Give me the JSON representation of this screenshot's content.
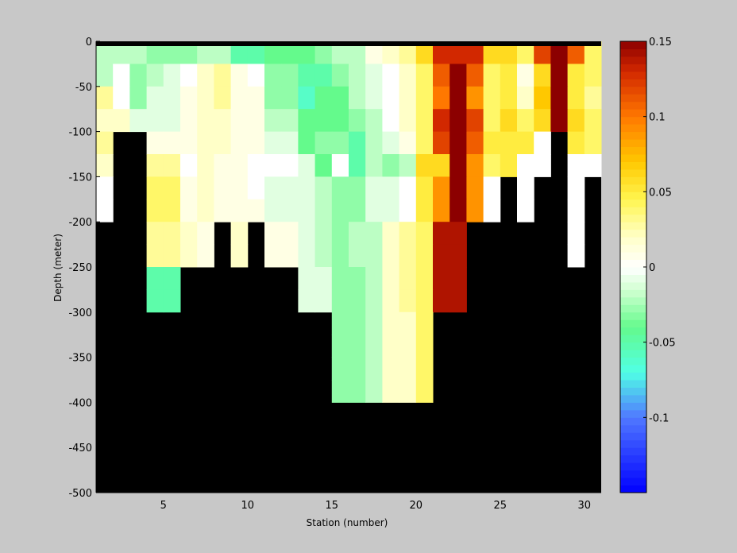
{
  "chart_data": {
    "type": "heatmap",
    "title": "",
    "xlabel": "Station (number)",
    "ylabel": "Depth (meter)",
    "xlim": [
      1,
      31
    ],
    "ylim": [
      -500,
      0
    ],
    "xticks": [
      5,
      10,
      15,
      20,
      25,
      30
    ],
    "yticks": [
      0,
      -50,
      -100,
      -150,
      -200,
      -250,
      -300,
      -350,
      -400,
      -450,
      -500
    ],
    "colorbar": {
      "range": [
        -0.15,
        0.15
      ],
      "ticks": [
        0.15,
        0.1,
        0.05,
        0,
        -0.05,
        -0.1
      ],
      "tick_labels": [
        "0.15",
        "0.1",
        "0.05",
        "0",
        "-0.05",
        "-0.1"
      ],
      "colormap": "jet-like diverging (blue-cyan-green-white-yellow-orange-red)"
    },
    "no_data_color": "#000000",
    "background_color": "#c8c8c8",
    "depth_rows": [
      -12.5,
      -37.5,
      -62.5,
      -87.5,
      -112.5,
      -137.5,
      -162.5,
      -187.5,
      -212.5,
      -237.5,
      -262.5,
      -287.5,
      -312.5,
      -337.5,
      -362.5,
      -387.5
    ],
    "stations": [
      1,
      2,
      3,
      4,
      5,
      6,
      7,
      8,
      9,
      10,
      11,
      12,
      13,
      14,
      15,
      16,
      17,
      18,
      19,
      20,
      21,
      22,
      23,
      24,
      25,
      26,
      27,
      28,
      29,
      30
    ],
    "bottom_depth": [
      -200,
      -100,
      -100,
      -300,
      -300,
      -250,
      -250,
      -200,
      -250,
      -200,
      -250,
      -250,
      -300,
      -300,
      -400,
      -400,
      -400,
      -400,
      -400,
      -400,
      -300,
      -300,
      -200,
      -200,
      -150,
      -200,
      -150,
      -100,
      -250,
      -150,
      -125
    ],
    "values": [
      [
        -0.02,
        -0.02,
        -0.02,
        -0.03,
        -0.03,
        -0.03,
        -0.02,
        -0.02,
        -0.05,
        -0.05,
        -0.04,
        -0.04,
        -0.04,
        -0.03,
        -0.02,
        -0.02,
        0.01,
        0.02,
        0.03,
        0.06,
        0.13,
        0.13,
        0.13,
        0.06,
        0.06,
        0.04,
        0.12,
        0.15,
        0.11,
        0.04
      ],
      [
        -0.02,
        0.0,
        -0.03,
        -0.02,
        -0.01,
        0.0,
        0.02,
        0.03,
        0.01,
        0.0,
        -0.03,
        -0.03,
        -0.05,
        -0.05,
        -0.03,
        -0.02,
        -0.01,
        0.0,
        0.02,
        0.04,
        0.11,
        0.15,
        0.11,
        0.04,
        0.05,
        0.01,
        0.06,
        0.15,
        0.05,
        0.04
      ],
      [
        0.03,
        0.0,
        -0.03,
        -0.01,
        -0.01,
        0.01,
        0.02,
        0.03,
        0.01,
        0.01,
        -0.03,
        -0.03,
        -0.06,
        -0.04,
        -0.04,
        -0.02,
        -0.01,
        0.0,
        0.02,
        0.04,
        0.1,
        0.15,
        0.09,
        0.04,
        0.05,
        0.02,
        0.07,
        0.15,
        0.05,
        0.03
      ],
      [
        0.02,
        0.02,
        -0.01,
        -0.01,
        -0.01,
        0.01,
        0.02,
        0.02,
        0.01,
        0.01,
        -0.02,
        -0.02,
        -0.04,
        -0.04,
        -0.04,
        -0.03,
        -0.02,
        0.0,
        0.02,
        0.04,
        0.13,
        0.15,
        0.12,
        0.04,
        0.06,
        0.04,
        0.06,
        0.15,
        0.06,
        0.04
      ],
      [
        0.03,
        0.0,
        0.0,
        0.01,
        0.01,
        0.01,
        0.02,
        0.02,
        0.01,
        0.01,
        -0.01,
        -0.01,
        -0.04,
        -0.03,
        -0.03,
        -0.05,
        -0.02,
        -0.01,
        0.01,
        0.04,
        0.12,
        0.15,
        0.11,
        0.05,
        0.05,
        0.05,
        0.0,
        0.15,
        0.05,
        0.04
      ],
      [
        0.02,
        0.0,
        0.0,
        0.03,
        0.03,
        0.0,
        0.02,
        0.01,
        0.01,
        0.0,
        0.0,
        0.0,
        -0.01,
        -0.04,
        0.0,
        -0.05,
        -0.02,
        -0.03,
        -0.02,
        0.06,
        0.06,
        0.15,
        0.09,
        0.04,
        0.05,
        0.0,
        0.0,
        0.15,
        0.0,
        0.0
      ],
      [
        0.0,
        0.0,
        0.0,
        0.04,
        0.04,
        0.01,
        0.02,
        0.01,
        0.01,
        0.0,
        -0.01,
        -0.01,
        -0.01,
        -0.02,
        -0.03,
        -0.03,
        -0.01,
        -0.01,
        0.0,
        0.05,
        0.09,
        0.15,
        0.09,
        0.0,
        0.05,
        0.0,
        0.0,
        0.09,
        0.0,
        0.0
      ],
      [
        0.0,
        0.0,
        0.0,
        0.04,
        0.04,
        0.01,
        0.02,
        0.01,
        0.01,
        0.01,
        -0.01,
        -0.01,
        -0.01,
        -0.02,
        -0.03,
        -0.03,
        -0.01,
        -0.01,
        0.0,
        0.05,
        0.09,
        0.15,
        0.09,
        0.0,
        0.05,
        0.0,
        0.0,
        0.09,
        0.0,
        0.0
      ],
      [
        0.0,
        0.0,
        0.0,
        0.03,
        0.03,
        0.02,
        0.01,
        0.0,
        0.02,
        0.0,
        0.01,
        0.01,
        -0.01,
        -0.02,
        -0.03,
        -0.02,
        -0.02,
        0.02,
        0.03,
        0.04,
        0.14,
        0.14,
        0.0,
        0.0,
        0.0,
        0.0,
        0.0,
        0.0,
        0.0,
        0.0
      ],
      [
        0.0,
        0.0,
        0.0,
        0.03,
        0.03,
        0.02,
        0.01,
        0.0,
        0.02,
        0.0,
        0.01,
        0.01,
        -0.01,
        -0.02,
        -0.03,
        -0.02,
        -0.02,
        0.02,
        0.03,
        0.04,
        0.14,
        0.14,
        0.0,
        0.0,
        0.0,
        0.0,
        0.0,
        0.0,
        0.0,
        0.0
      ],
      [
        0.0,
        0.0,
        0.0,
        -0.05,
        -0.05,
        0.0,
        0.0,
        0.0,
        0.0,
        0.0,
        0.0,
        0.0,
        -0.01,
        -0.01,
        -0.03,
        -0.03,
        -0.02,
        0.02,
        0.03,
        0.04,
        0.14,
        0.14,
        0.0,
        0.0,
        0.0,
        0.0,
        0.0,
        0.0,
        0.0,
        0.0
      ],
      [
        0.0,
        0.0,
        0.0,
        -0.05,
        -0.05,
        0.0,
        0.0,
        0.0,
        0.0,
        0.0,
        0.0,
        0.0,
        -0.01,
        -0.01,
        -0.03,
        -0.03,
        -0.02,
        0.02,
        0.03,
        0.04,
        0.14,
        0.14,
        0.0,
        0.0,
        0.0,
        0.0,
        0.0,
        0.0,
        0.0,
        0.0
      ],
      [
        0.0,
        0.0,
        0.0,
        0.0,
        0.0,
        0.0,
        0.0,
        0.0,
        0.0,
        0.0,
        0.0,
        0.0,
        0.0,
        0.0,
        -0.03,
        -0.03,
        -0.02,
        0.02,
        0.02,
        0.04,
        0.0,
        0.0,
        0.0,
        0.0,
        0.0,
        0.0,
        0.0,
        0.0,
        0.0,
        0.0
      ],
      [
        0.0,
        0.0,
        0.0,
        0.0,
        0.0,
        0.0,
        0.0,
        0.0,
        0.0,
        0.0,
        0.0,
        0.0,
        0.0,
        0.0,
        -0.03,
        -0.03,
        -0.02,
        0.02,
        0.02,
        0.04,
        0.0,
        0.0,
        0.0,
        0.0,
        0.0,
        0.0,
        0.0,
        0.0,
        0.0,
        0.0
      ],
      [
        0.0,
        0.0,
        0.0,
        0.0,
        0.0,
        0.0,
        0.0,
        0.0,
        0.0,
        0.0,
        0.0,
        0.0,
        0.0,
        0.0,
        -0.03,
        -0.03,
        -0.02,
        0.02,
        0.02,
        0.04,
        0.0,
        0.0,
        0.0,
        0.0,
        0.0,
        0.0,
        0.0,
        0.0,
        0.0,
        0.0
      ],
      [
        0.0,
        0.0,
        0.0,
        0.0,
        0.0,
        0.0,
        0.0,
        0.0,
        0.0,
        0.0,
        0.0,
        0.0,
        0.0,
        0.0,
        -0.03,
        -0.03,
        -0.02,
        0.02,
        0.02,
        0.04,
        0.0,
        0.0,
        0.0,
        0.0,
        0.0,
        0.0,
        0.0,
        0.0,
        0.0,
        0.0
      ]
    ]
  }
}
